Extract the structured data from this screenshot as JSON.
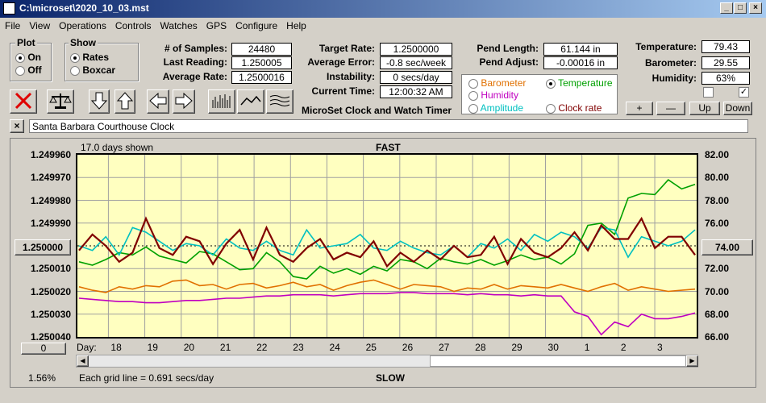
{
  "window": {
    "title": "C:\\microset\\2020_10_03.mst"
  },
  "menu": [
    "File",
    "View",
    "Operations",
    "Controls",
    "Watches",
    "GPS",
    "Configure",
    "Help"
  ],
  "plot_group": {
    "label": "Plot",
    "options": [
      "On",
      "Off"
    ],
    "selected": "On"
  },
  "show_group": {
    "label": "Show",
    "options": [
      "Rates",
      "Boxcar"
    ],
    "selected": "Rates"
  },
  "stats": {
    "samples_label": "# of Samples:",
    "samples": "24480",
    "last_label": "Last Reading:",
    "last": "1.250005",
    "avg_label": "Average Rate:",
    "avg": "1.2500016",
    "target_label": "Target Rate:",
    "target": "1.2500000",
    "avgerr_label": "Average Error:",
    "avgerr": "-0.8 sec/week",
    "instab_label": "Instability:",
    "instab": "0 secs/day",
    "time_label": "Current Time:",
    "time": "12:00:32 AM",
    "pendlen_label": "Pend Length:",
    "pendlen": "61.144 in",
    "pendadj_label": "Pend Adjust:",
    "pendadj": "-0.00016 in",
    "temp_label": "Temperature:",
    "temp": "79.43",
    "baro_label": "Barometer:",
    "baro": "29.55",
    "hum_label": "Humidity:",
    "hum": "63%"
  },
  "app_caption": "MicroSet Clock and Watch Timer",
  "series_select": {
    "options": [
      {
        "label": "Barometer",
        "color": "#e07000"
      },
      {
        "label": "Temperature",
        "color": "#00a000"
      },
      {
        "label": "Humidity",
        "color": "#c000c0"
      },
      {
        "label": "Amplitude",
        "color": "#00c0c0"
      },
      {
        "label": "Clock rate",
        "color": "#800000"
      }
    ],
    "selected": "Temperature"
  },
  "right_buttons": [
    "+",
    "—",
    "Up",
    "Down"
  ],
  "checkboxes": [
    false,
    true
  ],
  "clock_name": "Santa Barbara Courthouse Clock",
  "chart_data": {
    "type": "line",
    "top_label": "FAST",
    "bottom_label": "SLOW",
    "days_shown": "17.0 days shown",
    "grid_note": "Each grid line = 0.691 secs/day",
    "left_percent": "1.56%",
    "y_left_ticks": [
      "1.249960",
      "1.249970",
      "1.249980",
      "1.249990",
      "1.250000",
      "1.250010",
      "1.250020",
      "1.250030",
      "1.250040"
    ],
    "y_right_ticks": [
      "82.00",
      "80.00",
      "78.00",
      "76.00",
      "74.00",
      "72.00",
      "70.00",
      "68.00",
      "66.00"
    ],
    "y_left_range": [
      1.24996,
      1.25004
    ],
    "y_right_range": [
      66,
      82
    ],
    "x_label": "Day:",
    "x_ticks": [
      "18",
      "19",
      "20",
      "21",
      "22",
      "23",
      "24",
      "25",
      "26",
      "27",
      "28",
      "29",
      "30",
      "1",
      "2",
      "3"
    ],
    "left_box_value": "0",
    "series": [
      {
        "name": "Temperature",
        "color": "#00a000",
        "values": [
          72.6,
          72.3,
          72.8,
          73.4,
          73.2,
          73.9,
          73.1,
          72.8,
          72.5,
          73.5,
          73.3,
          72.6,
          71.9,
          72.0,
          73.4,
          72.6,
          71.3,
          71.1,
          72.2,
          71.6,
          72.0,
          71.5,
          72.2,
          71.8,
          72.8,
          72.6,
          72.0,
          72.9,
          72.6,
          72.4,
          72.8,
          72.3,
          72.7,
          73.2,
          72.8,
          73.0,
          72.4,
          73.3,
          75.8,
          76.0,
          75.0,
          78.2,
          78.6,
          78.5,
          79.8,
          79.0,
          79.4
        ]
      },
      {
        "name": "Barometer",
        "color": "#e07000",
        "values": [
          70.4,
          70.1,
          69.9,
          70.4,
          70.2,
          70.5,
          70.4,
          70.9,
          71.0,
          70.5,
          70.6,
          70.2,
          70.6,
          70.7,
          70.3,
          70.5,
          70.8,
          70.4,
          70.6,
          70.1,
          70.5,
          70.8,
          71.0,
          70.6,
          70.2,
          70.6,
          70.5,
          70.4,
          70.0,
          70.3,
          70.2,
          70.6,
          70.2,
          70.5,
          70.4,
          70.3,
          70.6,
          70.3,
          70.0,
          70.4,
          70.7,
          70.1,
          70.4,
          70.2,
          70.0,
          70.1,
          70.2
        ]
      },
      {
        "name": "Humidity",
        "color": "#c000c0",
        "values": [
          69.4,
          69.3,
          69.2,
          69.1,
          69.1,
          69.0,
          69.0,
          69.1,
          69.2,
          69.2,
          69.3,
          69.4,
          69.4,
          69.5,
          69.6,
          69.6,
          69.7,
          69.7,
          69.7,
          69.6,
          69.7,
          69.8,
          69.8,
          69.8,
          69.9,
          69.9,
          69.8,
          69.8,
          69.8,
          69.7,
          69.8,
          69.7,
          69.7,
          69.6,
          69.7,
          69.6,
          69.6,
          68.2,
          67.8,
          66.2,
          67.3,
          66.9,
          68.0,
          67.6,
          67.6,
          67.8,
          68.1
        ]
      },
      {
        "name": "Amplitude",
        "color": "#00c0c0",
        "values": [
          1.25,
          1.250002,
          1.249996,
          1.250004,
          1.249992,
          1.249994,
          1.249998,
          1.250002,
          1.249999,
          1.25,
          1.250004,
          1.249997,
          1.250001,
          1.250002,
          1.249998,
          1.250002,
          1.250004,
          1.249993,
          1.250001,
          1.25,
          1.249999,
          1.249995,
          1.250001,
          1.250002,
          1.249998,
          1.250001,
          1.250003,
          1.250004,
          1.25,
          1.250005,
          1.249999,
          1.250001,
          1.249997,
          1.250002,
          1.249995,
          1.249998,
          1.249994,
          1.249996,
          1.250001,
          1.249992,
          1.249993,
          1.250005,
          1.249996,
          1.249998,
          1.25,
          1.249998,
          1.249993
        ]
      },
      {
        "name": "Clock rate",
        "color": "#800000",
        "values": [
          1.250002,
          1.249995,
          1.25,
          1.250007,
          1.250003,
          1.249988,
          1.250001,
          1.250004,
          1.249996,
          1.249998,
          1.250008,
          1.249999,
          1.249993,
          1.250006,
          1.249992,
          1.250004,
          1.250007,
          1.250001,
          1.249997,
          1.250006,
          1.250003,
          1.250005,
          1.249998,
          1.250009,
          1.250003,
          1.250007,
          1.250002,
          1.250006,
          1.25,
          1.250005,
          1.250004,
          1.249996,
          1.250008,
          1.249997,
          1.250003,
          1.250005,
          1.250001,
          1.249994,
          1.250002,
          1.249991,
          1.249997,
          1.249997,
          1.249988,
          1.250001,
          1.249996,
          1.249996,
          1.250004
        ]
      }
    ]
  }
}
